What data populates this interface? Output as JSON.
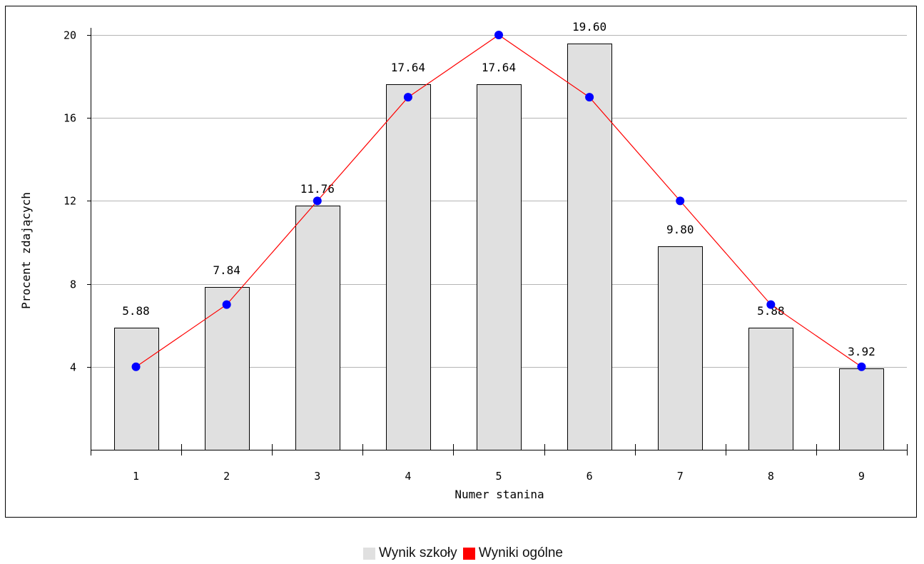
{
  "chart_data": {
    "type": "bar",
    "categories": [
      "1",
      "2",
      "3",
      "4",
      "5",
      "6",
      "7",
      "8",
      "9"
    ],
    "series": [
      {
        "name": "Wynik szkoły",
        "type": "bar",
        "values": [
          5.88,
          7.84,
          11.76,
          17.64,
          17.64,
          19.6,
          9.8,
          5.88,
          3.92
        ],
        "labels": [
          "5.88",
          "7.84",
          "11.76",
          "17.64",
          "17.64",
          "19.60",
          "9.80",
          "5.88",
          "3.92"
        ],
        "color": "#e0e0e0"
      },
      {
        "name": "Wyniki ogólne",
        "type": "line",
        "values": [
          4,
          7,
          12,
          17,
          20,
          17,
          12,
          7,
          4
        ],
        "color": "#ff0000",
        "marker_color": "#0000ff"
      }
    ],
    "xlabel": "Numer stanina",
    "ylabel": "Procent zdających",
    "ylim": [
      0,
      20
    ],
    "yticks": [
      "4",
      "8",
      "12",
      "16",
      "20"
    ],
    "grid": true,
    "legend_position": "bottom-center"
  }
}
